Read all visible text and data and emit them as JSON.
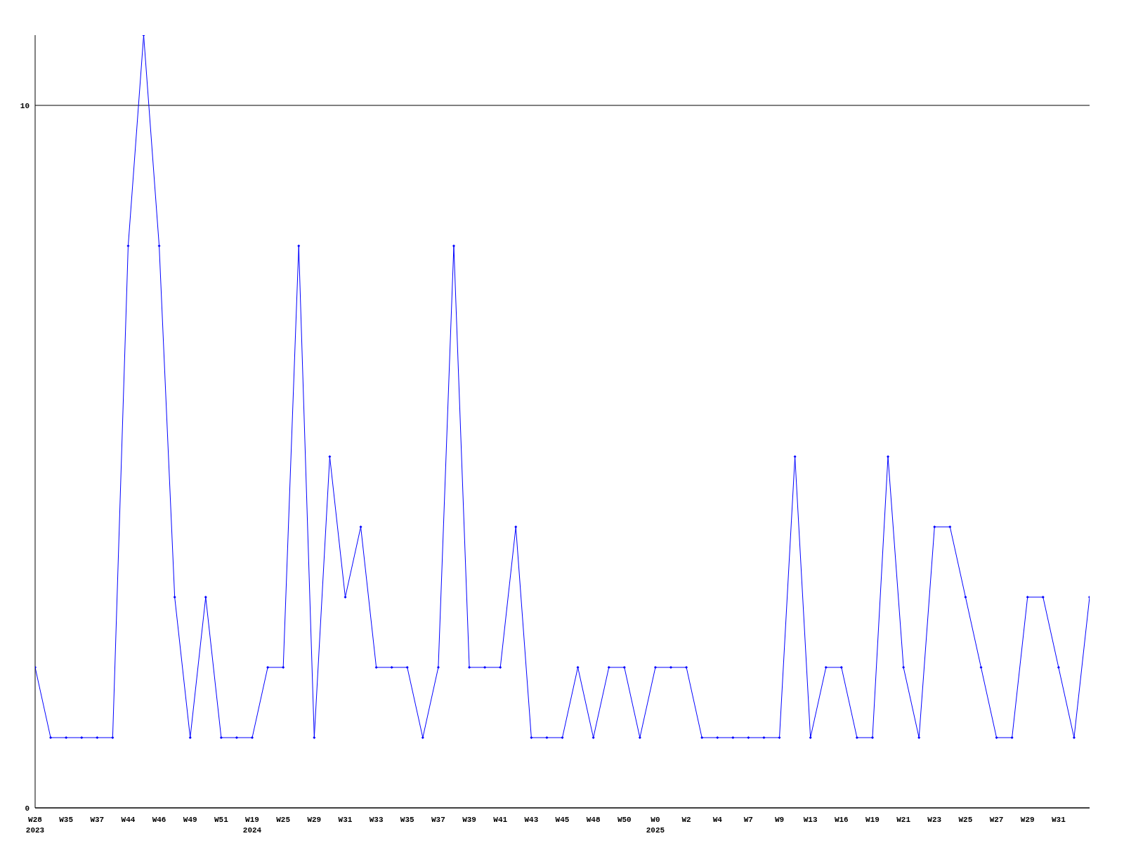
{
  "chart_data": {
    "type": "line",
    "categories": [
      "W28\n2023",
      null,
      "W35",
      null,
      "W37",
      null,
      "W44",
      null,
      "W46",
      null,
      "W49",
      null,
      "W51",
      null,
      "W19\n2024",
      null,
      "W25",
      null,
      "W29",
      null,
      "W31",
      null,
      "W33",
      null,
      "W35",
      null,
      "W37",
      null,
      "W39",
      null,
      "W41",
      null,
      "W43",
      null,
      "W45",
      null,
      "W48",
      null,
      "W50",
      null,
      "W0\n2025",
      null,
      "W2",
      null,
      "W4",
      null,
      "W7",
      null,
      "W9",
      null,
      "W13",
      null,
      "W16",
      null,
      "W19",
      null,
      "W21",
      null,
      "W23",
      null,
      "W25",
      null,
      "W27",
      null,
      "W29",
      null,
      "W31",
      null,
      null
    ],
    "series": [
      {
        "color": "#0000ff",
        "values": [
          2,
          1,
          1,
          1,
          1,
          1,
          8,
          11,
          8,
          3,
          1,
          3,
          1,
          1,
          1,
          2,
          2,
          8,
          1,
          5,
          3,
          4,
          2,
          2,
          2,
          1,
          2,
          8,
          2,
          2,
          2,
          4,
          1,
          1,
          1,
          2,
          1,
          2,
          2,
          1,
          2,
          2,
          2,
          1,
          1,
          1,
          1,
          1,
          1,
          5,
          1,
          2,
          2,
          1,
          1,
          5,
          2,
          1,
          4,
          4,
          3,
          2,
          1,
          1,
          3,
          3,
          2,
          1,
          3
        ]
      }
    ],
    "ylim": [
      0,
      11
    ],
    "yticks": [
      0,
      10
    ],
    "grid": "y",
    "legend": false,
    "marker": "diamond",
    "line_style": "solid"
  }
}
